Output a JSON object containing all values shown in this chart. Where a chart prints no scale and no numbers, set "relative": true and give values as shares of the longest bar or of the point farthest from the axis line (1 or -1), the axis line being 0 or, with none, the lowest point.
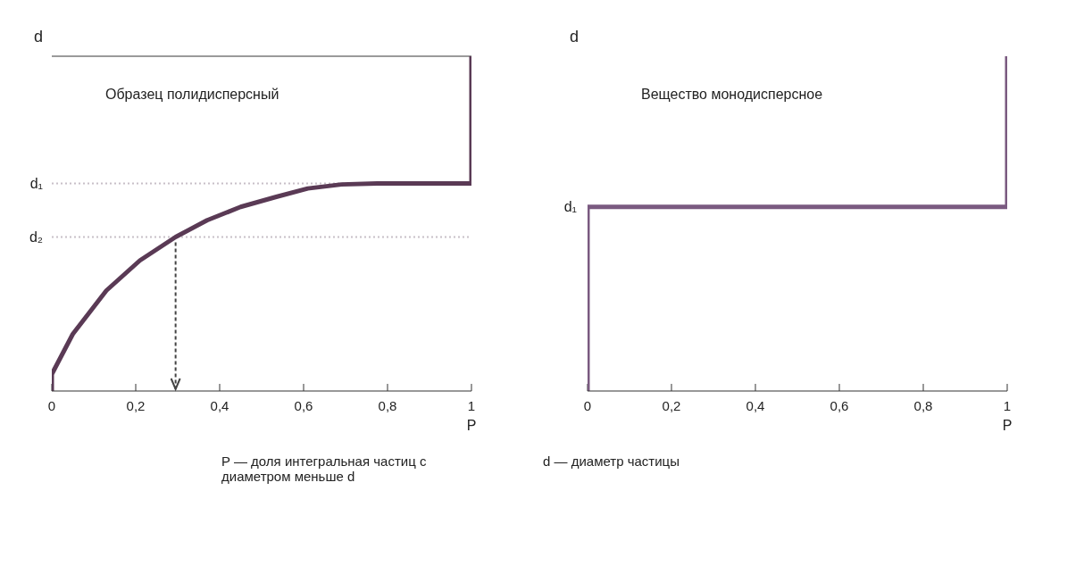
{
  "chart_data": [
    {
      "type": "line",
      "title": "Образец полидисперсный",
      "xlabel": "P",
      "ylabel": "d",
      "relative": true,
      "marker": "none",
      "xlim": [
        0,
        1
      ],
      "xticks": [
        {
          "value": 0,
          "label": "0"
        },
        {
          "value": 0.2,
          "label": "0,2"
        },
        {
          "value": 0.4,
          "label": "0,4"
        },
        {
          "value": 0.6,
          "label": "0,6"
        },
        {
          "value": 0.8,
          "label": "0,8"
        },
        {
          "value": 1,
          "label": "1"
        }
      ],
      "series": [
        {
          "color": "#5a3a55",
          "x": [
            0,
            0.0,
            0.05,
            0.13,
            0.21,
            0.295,
            0.37,
            0.45,
            0.535,
            0.61,
            0.69,
            0.775,
            1,
            1
          ],
          "values": [
            0,
            0.05,
            0.17,
            0.3,
            0.39,
            0.46,
            0.51,
            0.55,
            0.58,
            0.605,
            0.617,
            0.62,
            0.62,
            1
          ]
        }
      ],
      "ref_lines": [
        {
          "axis": "y",
          "value": 0.62,
          "label": "d₁",
          "color": "#c8c0c8",
          "line_style": "dotted"
        },
        {
          "axis": "y",
          "value": 0.46,
          "label": "d₂",
          "color": "#c8c0c8",
          "line_style": "dotted"
        },
        {
          "axis": "y",
          "value": 1,
          "label": null,
          "color": "#9a9a9a",
          "line_style": "solid"
        }
      ],
      "annotations": [
        "P — доля интегральная частиц с диаметром меньше d",
        "d — диаметр частицы"
      ]
    },
    {
      "type": "line",
      "title": "Вещество монодисперсное",
      "xlabel": "P",
      "ylabel": "d",
      "relative": true,
      "marker": "none",
      "xlim": [
        0,
        1
      ],
      "xticks": [
        {
          "value": 0,
          "label": "0"
        },
        {
          "value": 0.2,
          "label": "0,2"
        },
        {
          "value": 0.4,
          "label": "0,4"
        },
        {
          "value": 0.6,
          "label": "0,6"
        },
        {
          "value": 0.8,
          "label": "0,8"
        },
        {
          "value": 1,
          "label": "1"
        }
      ],
      "series": [
        {
          "color": "#7a5a80",
          "x": [
            0,
            0,
            1,
            1
          ],
          "values": [
            0,
            0.55,
            0.55,
            1
          ]
        }
      ],
      "annotations": [
        {
          "text": "d₁",
          "x": 0,
          "y": 0.55
        }
      ]
    }
  ]
}
